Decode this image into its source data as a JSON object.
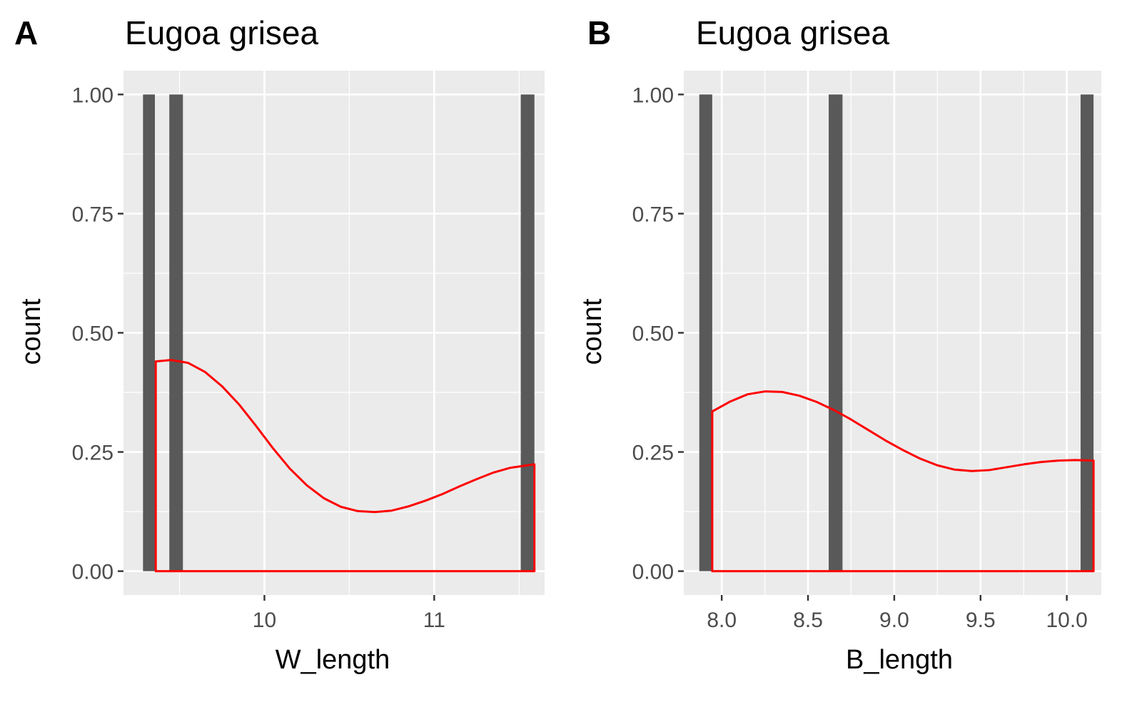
{
  "chart_data": [
    {
      "type": "bar",
      "panel_label": "A",
      "title": "Eugoa grisea",
      "xlabel": "W_length",
      "ylabel": "count",
      "xlim": [
        9.17,
        11.65
      ],
      "ylim": [
        -0.05,
        1.05
      ],
      "x_ticks": [
        10,
        11
      ],
      "x_tick_labels": [
        "10",
        "11"
      ],
      "x_minor_ticks": [
        9.5,
        10.5,
        11.5
      ],
      "y_ticks": [
        0,
        0.25,
        0.5,
        0.75,
        1.0
      ],
      "y_tick_labels": [
        "0.00",
        "0.25",
        "0.50",
        "0.75",
        "1.00"
      ],
      "grid": true,
      "bar_color": "#595959",
      "density_color": "#ff0000",
      "series": [
        {
          "kind": "histogram",
          "bins": [
            {
              "x0": 9.285,
              "x1": 9.355,
              "count": 1
            },
            {
              "x0": 9.44,
              "x1": 9.52,
              "count": 1
            },
            {
              "x0": 11.51,
              "x1": 11.59,
              "count": 1
            }
          ]
        },
        {
          "kind": "density",
          "x": [
            9.36,
            9.45,
            9.55,
            9.65,
            9.75,
            9.85,
            9.95,
            10.05,
            10.15,
            10.25,
            10.35,
            10.45,
            10.55,
            10.65,
            10.75,
            10.85,
            10.95,
            11.05,
            11.15,
            11.25,
            11.35,
            11.45,
            11.59
          ],
          "y": [
            0.44,
            0.443,
            0.437,
            0.418,
            0.388,
            0.35,
            0.305,
            0.258,
            0.215,
            0.18,
            0.153,
            0.135,
            0.126,
            0.124,
            0.127,
            0.136,
            0.148,
            0.162,
            0.178,
            0.193,
            0.207,
            0.217,
            0.224
          ]
        }
      ]
    },
    {
      "type": "bar",
      "panel_label": "B",
      "title": "Eugoa grisea",
      "xlabel": "B_length",
      "ylabel": "count",
      "xlim": [
        7.78,
        10.2
      ],
      "ylim": [
        -0.05,
        1.05
      ],
      "x_ticks": [
        8.0,
        8.5,
        9.0,
        9.5,
        10.0
      ],
      "x_tick_labels": [
        "8.0",
        "8.5",
        "9.0",
        "9.5",
        "10.0"
      ],
      "x_minor_ticks": [
        7.75,
        8.25,
        8.75,
        9.25,
        9.75
      ],
      "y_ticks": [
        0,
        0.25,
        0.5,
        0.75,
        1.0
      ],
      "y_tick_labels": [
        "0.00",
        "0.25",
        "0.50",
        "0.75",
        "1.00"
      ],
      "grid": true,
      "bar_color": "#595959",
      "density_color": "#ff0000",
      "series": [
        {
          "kind": "histogram",
          "bins": [
            {
              "x0": 7.87,
              "x1": 7.945,
              "count": 1
            },
            {
              "x0": 8.62,
              "x1": 8.7,
              "count": 1
            },
            {
              "x0": 10.08,
              "x1": 10.155,
              "count": 1
            }
          ]
        },
        {
          "kind": "density",
          "x": [
            7.945,
            8.05,
            8.15,
            8.25,
            8.35,
            8.45,
            8.55,
            8.65,
            8.75,
            8.85,
            8.95,
            9.05,
            9.15,
            9.25,
            9.35,
            9.45,
            9.55,
            9.65,
            9.75,
            9.85,
            9.95,
            10.05,
            10.155
          ],
          "y": [
            0.335,
            0.356,
            0.371,
            0.377,
            0.376,
            0.368,
            0.355,
            0.338,
            0.318,
            0.296,
            0.274,
            0.254,
            0.236,
            0.222,
            0.213,
            0.21,
            0.212,
            0.218,
            0.224,
            0.229,
            0.232,
            0.233,
            0.232
          ]
        }
      ]
    }
  ]
}
